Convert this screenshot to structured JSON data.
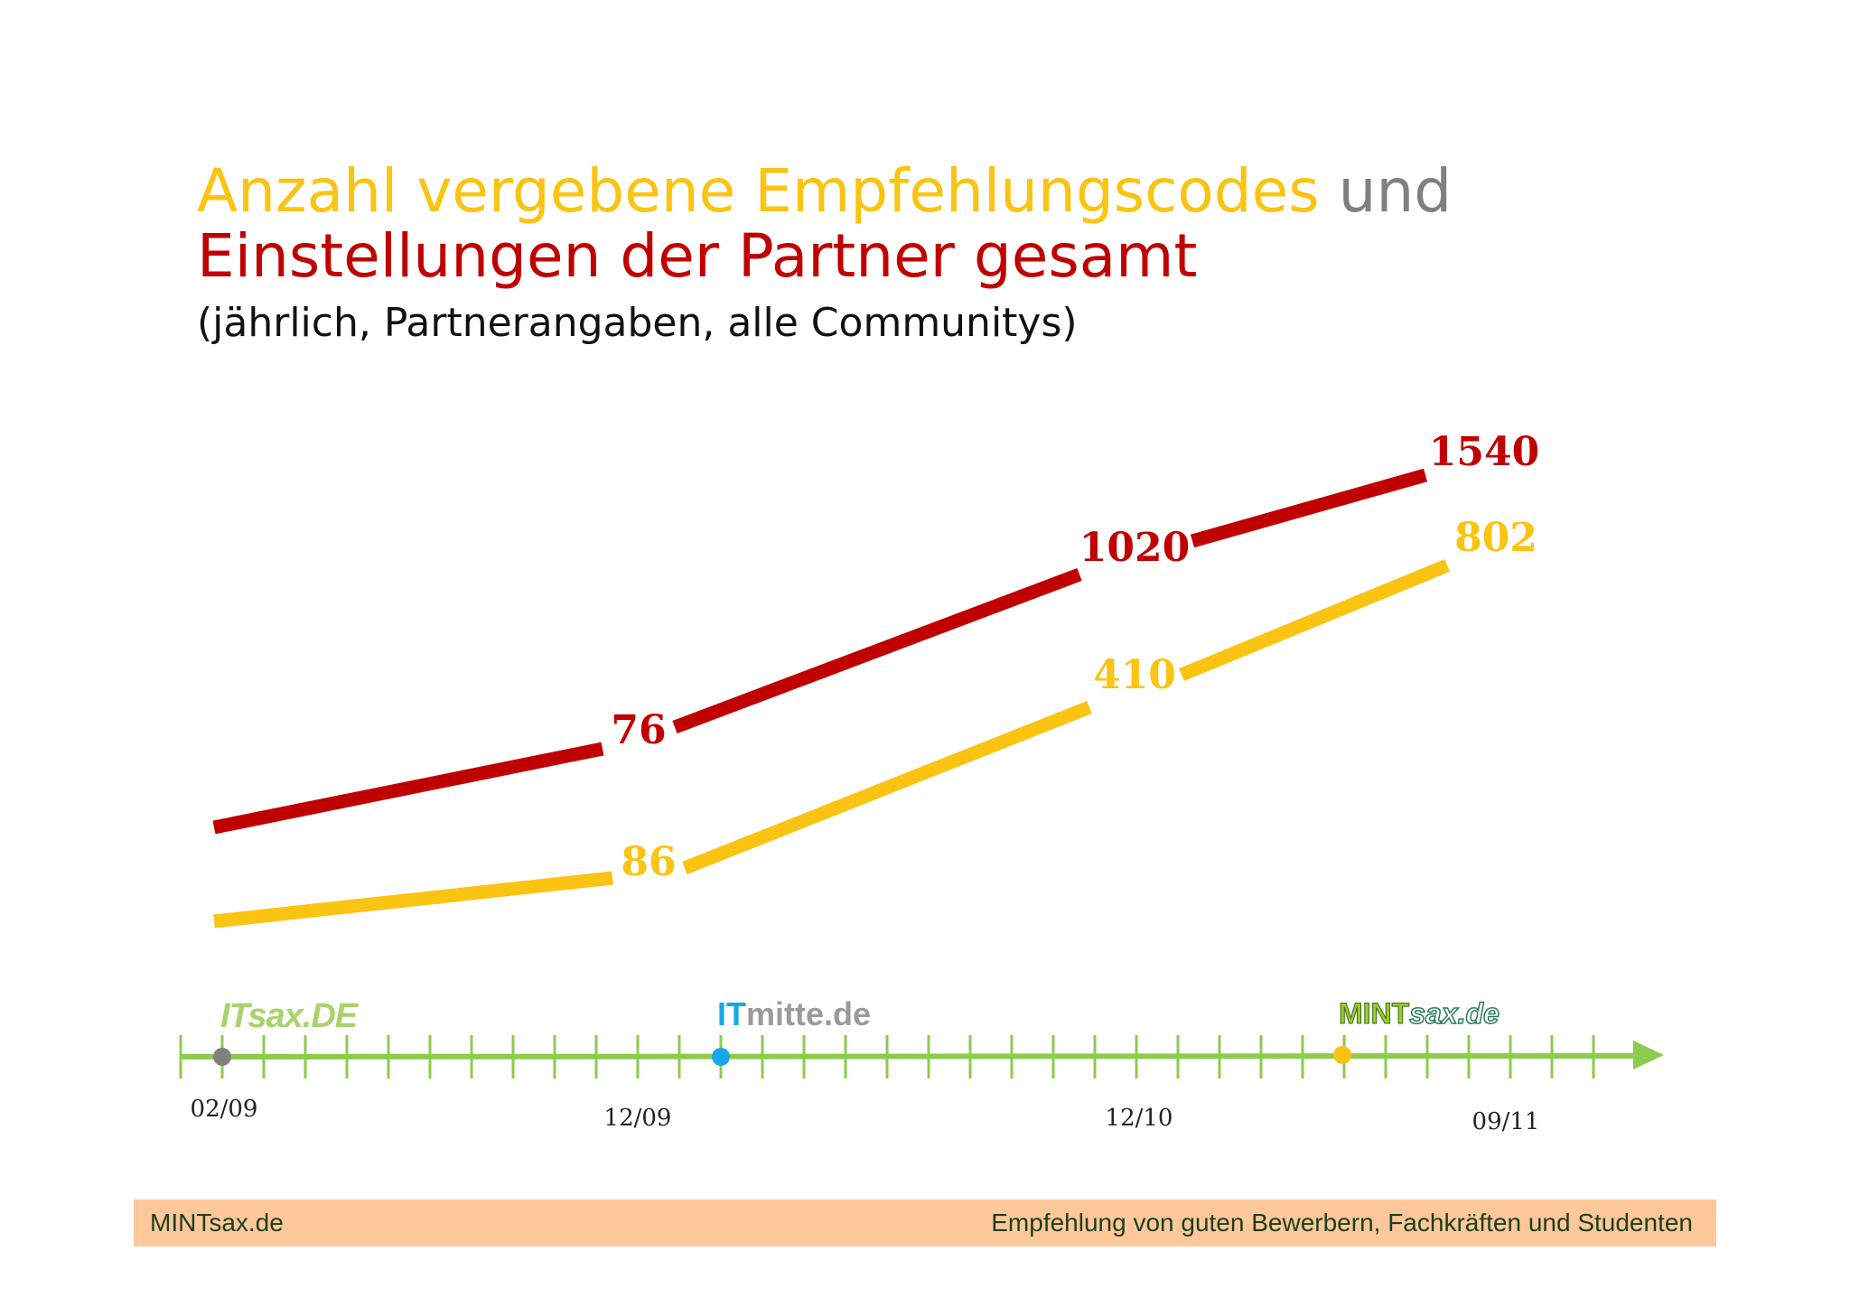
{
  "title": {
    "part1": "Anzahl vergebene Empfehlungscodes",
    "part2": "und",
    "line2": "Einstellungen der Partner gesamt",
    "subtitle": "(jährlich, Partnerangaben, alle Communitys)"
  },
  "colors": {
    "yellow": "#fbc312",
    "red": "#c00000",
    "gray": "#808080",
    "axis": "#8ccc4c",
    "itmitte_blue": "#18a8e8"
  },
  "chart_data": {
    "type": "line",
    "x": [
      "02/09",
      "12/09",
      "12/10",
      "09/11"
    ],
    "series": [
      {
        "color": "#c00000",
        "values": [
          null,
          76,
          1020,
          1540
        ],
        "labels": [
          "",
          "76",
          "1020",
          "1540"
        ]
      },
      {
        "color": "#fbc312",
        "values": [
          null,
          86,
          410,
          802
        ],
        "labels": [
          "",
          "86",
          "410",
          "802"
        ]
      }
    ],
    "timeline": {
      "tick_labels": [
        "02/09",
        "12/09",
        "12/10",
        "09/11"
      ],
      "milestones": [
        {
          "logo": "ITsax.de",
          "logo_text": "ITsax.DE",
          "dot_color": "#808080"
        },
        {
          "logo": "ITmitte.de",
          "logo_text_a": "IT",
          "logo_text_b": "mitte",
          "logo_text_c": ".de",
          "dot_color": "#18a8e8"
        },
        {
          "logo": "MINTsax.de",
          "logo_text_a": "MINT",
          "logo_text_b": "sax.de",
          "dot_color": "#fbc312"
        }
      ]
    }
  },
  "footer": {
    "left": "MINTsax.de",
    "right": "Empfehlung von guten Bewerbern, Fachkräften und Studenten"
  }
}
